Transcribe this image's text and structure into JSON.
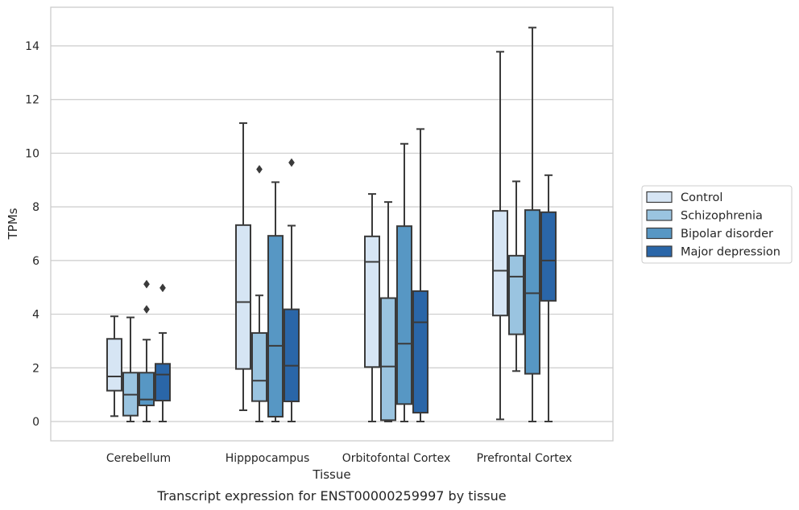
{
  "chart_data": {
    "type": "box",
    "title": "",
    "caption": "Transcript expression for ENST00000259997 by tissue",
    "xlabel": "Tissue",
    "ylabel": "TPMs",
    "ylim": [
      -0.7,
      15.4
    ],
    "yticks": [
      0,
      2,
      4,
      6,
      8,
      10,
      12,
      14
    ],
    "grid": "horizontal",
    "legend_position": "right",
    "categories": [
      "Cerebellum",
      "Hipppocampus",
      "Orbitofontal Cortex",
      "Prefrontal Cortex"
    ],
    "series": [
      {
        "name": "Control",
        "color": "#d6e5f4",
        "boxes": [
          {
            "whisker_low": 0.2,
            "q1": 1.15,
            "median": 1.68,
            "q3": 3.08,
            "whisker_high": 3.92,
            "outliers": []
          },
          {
            "whisker_low": 0.42,
            "q1": 1.96,
            "median": 4.45,
            "q3": 7.32,
            "whisker_high": 11.12,
            "outliers": []
          },
          {
            "whisker_low": 0.0,
            "q1": 2.03,
            "median": 5.95,
            "q3": 6.9,
            "whisker_high": 8.48,
            "outliers": []
          },
          {
            "whisker_low": 0.08,
            "q1": 3.95,
            "median": 5.62,
            "q3": 7.85,
            "whisker_high": 13.78,
            "outliers": []
          }
        ]
      },
      {
        "name": "Schizophrenia",
        "color": "#9ac4e0",
        "boxes": [
          {
            "whisker_low": 0.0,
            "q1": 0.22,
            "median": 1.0,
            "q3": 1.82,
            "whisker_high": 3.88,
            "outliers": []
          },
          {
            "whisker_low": 0.0,
            "q1": 0.76,
            "median": 1.52,
            "q3": 3.3,
            "whisker_high": 4.7,
            "outliers": [
              9.4
            ]
          },
          {
            "whisker_low": 0.0,
            "q1": 0.05,
            "median": 2.05,
            "q3": 4.6,
            "whisker_high": 8.18,
            "outliers": []
          },
          {
            "whisker_low": 1.88,
            "q1": 3.25,
            "median": 5.4,
            "q3": 6.18,
            "whisker_high": 8.95,
            "outliers": []
          }
        ]
      },
      {
        "name": "Bipolar disorder",
        "color": "#5797c4",
        "boxes": [
          {
            "whisker_low": 0.0,
            "q1": 0.6,
            "median": 0.82,
            "q3": 1.82,
            "whisker_high": 3.05,
            "outliers": [
              4.18,
              5.12
            ]
          },
          {
            "whisker_low": 0.0,
            "q1": 0.18,
            "median": 2.82,
            "q3": 6.92,
            "whisker_high": 8.92,
            "outliers": []
          },
          {
            "whisker_low": 0.0,
            "q1": 0.65,
            "median": 2.9,
            "q3": 7.28,
            "whisker_high": 10.35,
            "outliers": []
          },
          {
            "whisker_low": 0.0,
            "q1": 1.78,
            "median": 4.78,
            "q3": 7.88,
            "whisker_high": 14.68,
            "outliers": []
          }
        ]
      },
      {
        "name": "Major depression",
        "color": "#2a66a8",
        "boxes": [
          {
            "whisker_low": 0.0,
            "q1": 0.78,
            "median": 1.75,
            "q3": 2.15,
            "whisker_high": 3.3,
            "outliers": [
              4.98
            ]
          },
          {
            "whisker_low": 0.0,
            "q1": 0.75,
            "median": 2.08,
            "q3": 4.18,
            "whisker_high": 7.3,
            "outliers": [
              9.65
            ]
          },
          {
            "whisker_low": 0.0,
            "q1": 0.33,
            "median": 3.7,
            "q3": 4.86,
            "whisker_high": 10.9,
            "outliers": []
          },
          {
            "whisker_low": 0.0,
            "q1": 4.5,
            "median": 6.0,
            "q3": 7.8,
            "whisker_high": 9.18,
            "outliers": []
          }
        ]
      }
    ]
  }
}
